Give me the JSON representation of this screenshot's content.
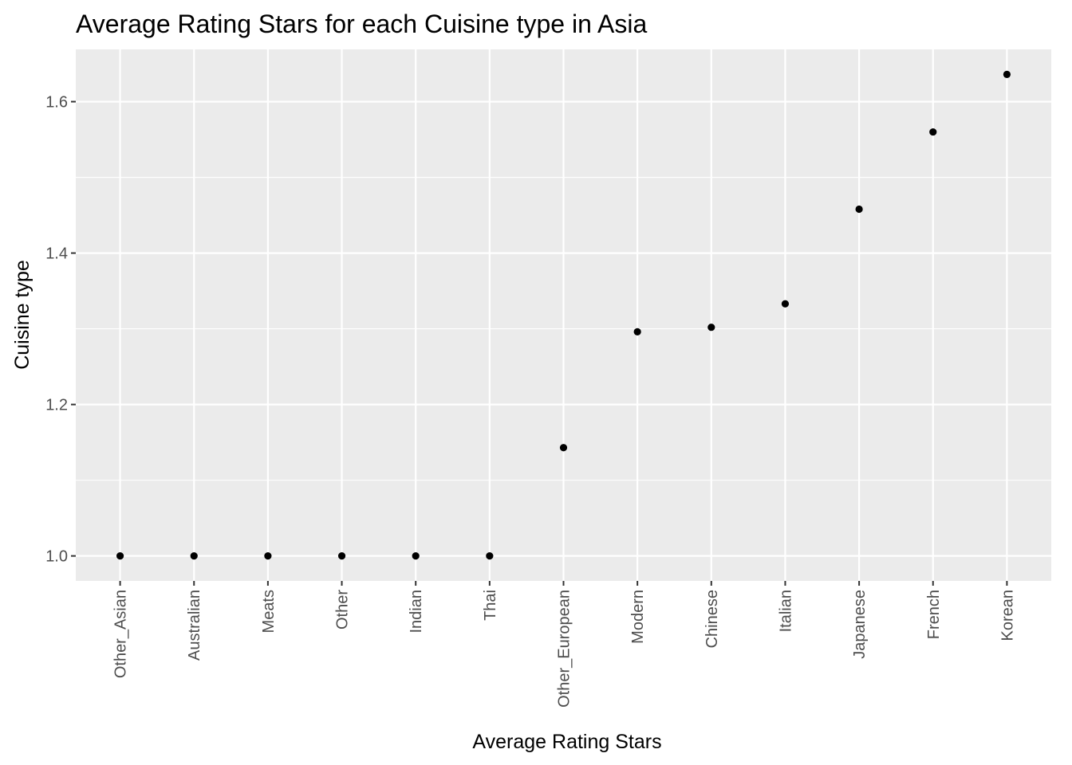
{
  "chart_data": {
    "type": "scatter",
    "title": "Average Rating Stars for each Cuisine type in Asia",
    "xlabel": "Average Rating Stars",
    "ylabel": "Cuisine type",
    "categories": [
      "Other_Asian",
      "Australian",
      "Meats",
      "Other",
      "Indian",
      "Thai",
      "Other_European",
      "Modern",
      "Chinese",
      "Italian",
      "Japanese",
      "French",
      "Korean"
    ],
    "values": [
      1.0,
      1.0,
      1.0,
      1.0,
      1.0,
      1.0,
      1.143,
      1.296,
      1.302,
      1.333,
      1.458,
      1.56,
      1.636
    ],
    "ylim": [
      0.967,
      1.669
    ],
    "y_ticks": [
      1.0,
      1.2,
      1.4,
      1.6
    ],
    "y_tick_labels": [
      "1.0",
      "1.2",
      "1.4",
      "1.6"
    ],
    "grid": true,
    "colors": {
      "panel": "#ebebeb",
      "grid": "#ffffff",
      "point": "#000000",
      "tick_text": "#4d4d4d",
      "tick_mark": "#333333"
    }
  }
}
